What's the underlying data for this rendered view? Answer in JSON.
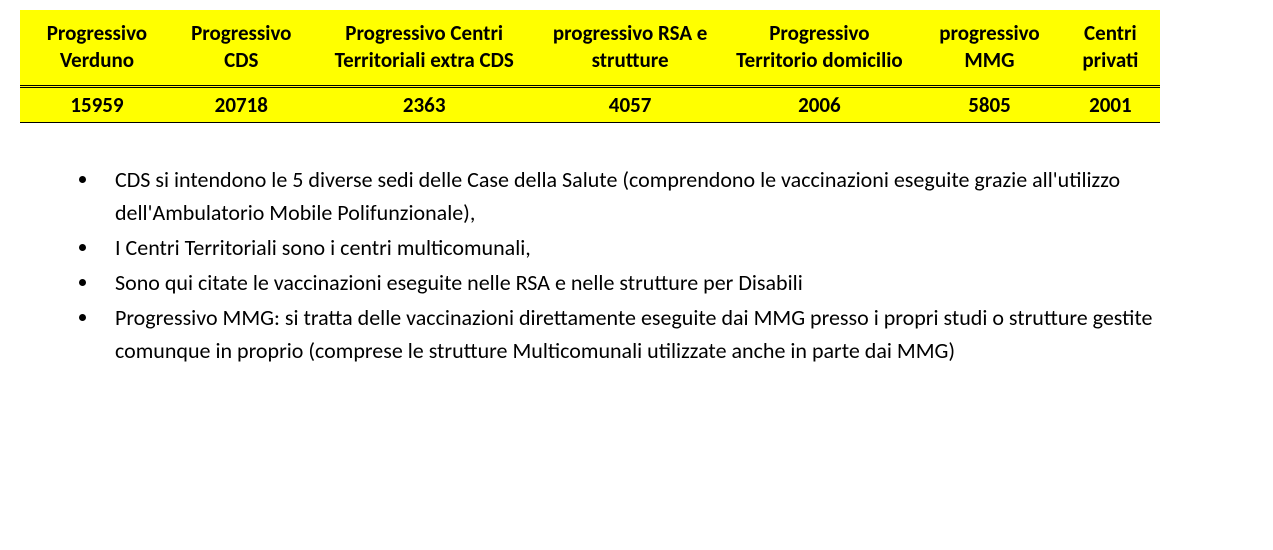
{
  "table": {
    "type": "table",
    "background_color": "#ffff00",
    "text_color": "#000000",
    "font_weight": "bold",
    "header_fontsize": 21,
    "cell_fontsize": 21,
    "header_border_bottom": "3px double #000000",
    "row_border_bottom": "1px solid #000000",
    "columns": [
      {
        "label": "Progressivo Verduno"
      },
      {
        "label": "Progressivo CDS"
      },
      {
        "label": "Progressivo Centri Territoriali extra CDS"
      },
      {
        "label": "progressivo RSA e strutture"
      },
      {
        "label": "Progressivo Territorio domicilio"
      },
      {
        "label": "progressivo MMG"
      },
      {
        "label": "Centri privati"
      }
    ],
    "rows": [
      [
        "15959",
        "20718",
        "2363",
        "4057",
        "2006",
        "5805",
        "2001"
      ]
    ]
  },
  "bullets": {
    "fontsize": 22,
    "text_color": "#000000",
    "items": [
      "CDS si intendono le 5 diverse sedi delle Case della Salute (comprendono le vaccinazioni eseguite grazie all'utilizzo dell'Ambulatorio Mobile Polifunzionale),",
      "I Centri Territoriali sono i centri multicomunali,",
      "Sono qui citate le vaccinazioni eseguite nelle RSA e nelle strutture per Disabili",
      "Progressivo MMG: si tratta delle vaccinazioni direttamente eseguite dai MMG presso i propri studi o strutture gestite comunque in proprio (comprese le strutture Multicomunali utilizzate anche in parte dai MMG)"
    ]
  }
}
